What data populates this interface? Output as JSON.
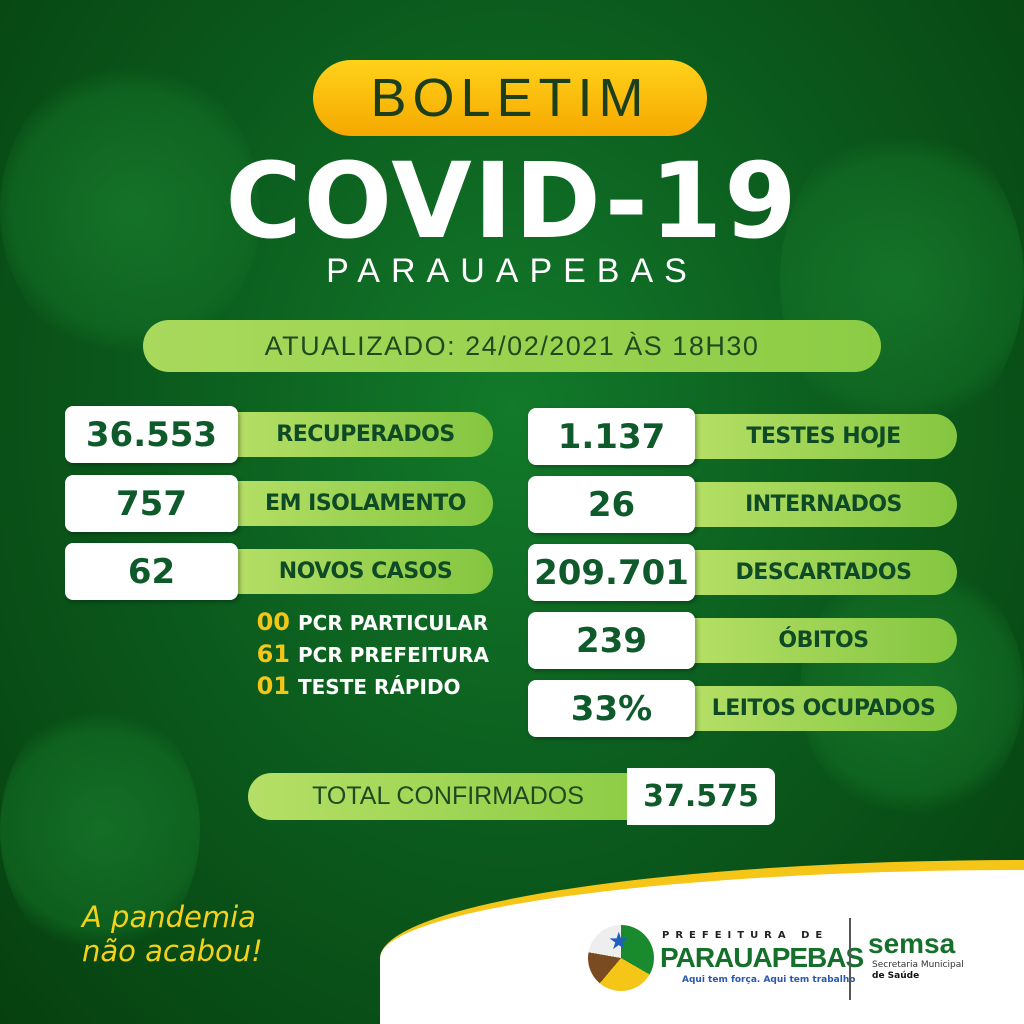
{
  "header": {
    "badge": "BOLETIM",
    "title": "COVID-19",
    "city": "PARAUAPEBAS",
    "updated": "ATUALIZADO: 24/02/2021 ÀS 18H30"
  },
  "left_stats": [
    {
      "value": "36.553",
      "label": "RECUPERADOS"
    },
    {
      "value": "757",
      "label": "EM ISOLAMENTO"
    },
    {
      "value": "62",
      "label": "NOVOS CASOS"
    }
  ],
  "new_cases_breakdown": [
    {
      "value": "00",
      "label": "PCR PARTICULAR"
    },
    {
      "value": "61",
      "label": "PCR PREFEITURA"
    },
    {
      "value": "01",
      "label": "TESTE RÁPIDO"
    }
  ],
  "right_stats": [
    {
      "value": "1.137",
      "label": "TESTES HOJE"
    },
    {
      "value": "26",
      "label": "INTERNADOS"
    },
    {
      "value": "209.701",
      "label": "DESCARTADOS"
    },
    {
      "value": "239",
      "label": "ÓBITOS"
    },
    {
      "value": "33%",
      "label": "LEITOS OCUPADOS"
    }
  ],
  "total": {
    "label": "TOTAL CONFIRMADOS",
    "value": "37.575"
  },
  "slogan": {
    "line1": "A pandemia",
    "line2": "não acabou!"
  },
  "logos": {
    "prefeitura_top": "PREFEITURA DE",
    "prefeitura_name": "PARAUAPEBAS",
    "prefeitura_tagline": "Aqui tem força. Aqui tem trabalho",
    "semsa": "semsa",
    "semsa_sub1": "Secretaria Municipal",
    "semsa_sub2": "de Saúde"
  },
  "colors": {
    "background": "#0b5a1d",
    "accent_yellow": "#f5c518",
    "label_green": "#a9d95c",
    "text_green": "#0e5a2b"
  }
}
